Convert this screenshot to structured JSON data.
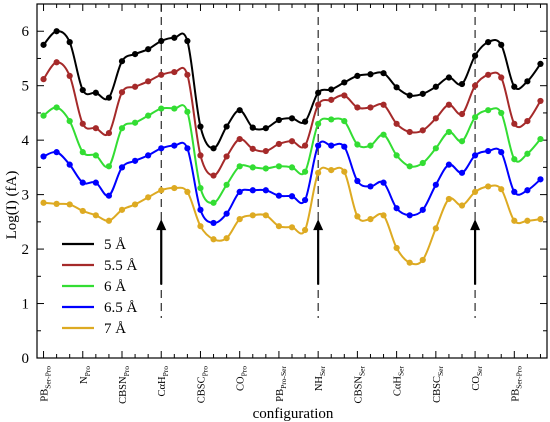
{
  "chart_data": {
    "type": "line",
    "title": "",
    "xlabel": "configuration",
    "ylabel": "Log(I) (fA)",
    "ylim": [
      0,
      6.5
    ],
    "yticks": [
      0,
      1,
      2,
      3,
      4,
      5,
      6
    ],
    "xlim": [
      0.5,
      39.5
    ],
    "grid": false,
    "legend_position": "lower-left",
    "x_categories": [
      {
        "base": "PB",
        "sub": "Ser-Pro",
        "x": 1
      },
      {
        "base": "N",
        "sub": "Pro",
        "x": 4
      },
      {
        "base": "CBSN",
        "sub": "Pro",
        "x": 7
      },
      {
        "base": "CαH",
        "sub": "Pro",
        "x": 10
      },
      {
        "base": "CBSC",
        "sub": "Pro",
        "x": 13
      },
      {
        "base": "CO",
        "sub": "Pro",
        "x": 16
      },
      {
        "base": "PB",
        "sub": "Pro-Ser",
        "x": 19
      },
      {
        "base": "NH",
        "sub": "Ser",
        "x": 22
      },
      {
        "base": "CBSN",
        "sub": "Ser",
        "x": 25
      },
      {
        "base": "CαH",
        "sub": "Ser",
        "x": 28
      },
      {
        "base": "CBSC",
        "sub": "Ser",
        "x": 31
      },
      {
        "base": "CO",
        "sub": "Ser",
        "x": 34
      },
      {
        "base": "PB",
        "sub": "Ser-Pro",
        "x": 37
      }
    ],
    "dashed_lines_x": [
      10,
      22,
      34
    ],
    "arrows": [
      {
        "x": 10,
        "y_from": 1.35,
        "y_to": 2.55
      },
      {
        "x": 22,
        "y_from": 1.35,
        "y_to": 2.55
      },
      {
        "x": 34,
        "y_from": 1.35,
        "y_to": 2.55
      }
    ],
    "x": [
      1,
      2,
      3,
      4,
      5,
      6,
      7,
      8,
      9,
      10,
      11,
      12,
      13,
      14,
      15,
      16,
      17,
      18,
      19,
      20,
      21,
      22,
      23,
      24,
      25,
      26,
      27,
      28,
      29,
      30,
      31,
      32,
      33,
      34,
      35,
      36,
      37,
      38,
      39
    ],
    "series": [
      {
        "name": "5 Å",
        "color": "#000000",
        "values": [
          5.75,
          6.0,
          5.8,
          4.92,
          4.87,
          4.78,
          5.45,
          5.58,
          5.67,
          5.82,
          5.88,
          5.82,
          4.25,
          3.85,
          4.25,
          4.55,
          4.23,
          4.22,
          4.37,
          4.4,
          4.34,
          4.87,
          4.93,
          5.06,
          5.18,
          5.21,
          5.23,
          4.97,
          4.82,
          4.85,
          4.98,
          5.15,
          5.03,
          5.55,
          5.8,
          5.75,
          4.98,
          5.08,
          5.4
        ]
      },
      {
        "name": "5.5 Å",
        "color": "#a52a2a",
        "values": [
          5.12,
          5.43,
          5.18,
          4.3,
          4.22,
          4.13,
          4.88,
          4.98,
          5.08,
          5.2,
          5.25,
          5.2,
          3.72,
          3.35,
          3.7,
          4.02,
          3.84,
          3.8,
          3.93,
          3.98,
          3.9,
          4.65,
          4.74,
          4.82,
          4.6,
          4.6,
          4.65,
          4.3,
          4.15,
          4.18,
          4.4,
          4.65,
          4.48,
          5.0,
          5.2,
          5.15,
          4.3,
          4.35,
          4.72
        ]
      },
      {
        "name": "6 Å",
        "color": "#33dd33",
        "values": [
          4.45,
          4.6,
          4.35,
          3.78,
          3.72,
          3.52,
          4.22,
          4.32,
          4.45,
          4.58,
          4.58,
          4.52,
          3.12,
          2.85,
          3.18,
          3.52,
          3.5,
          3.48,
          3.52,
          3.5,
          3.42,
          4.3,
          4.38,
          4.35,
          3.92,
          3.9,
          4.1,
          3.72,
          3.52,
          3.58,
          3.85,
          4.15,
          3.98,
          4.42,
          4.55,
          4.5,
          3.65,
          3.75,
          4.02
        ]
      },
      {
        "name": "6.5 Å",
        "color": "#0000ff",
        "values": [
          3.7,
          3.78,
          3.55,
          3.22,
          3.22,
          2.98,
          3.5,
          3.62,
          3.72,
          3.85,
          3.9,
          3.85,
          2.72,
          2.48,
          2.65,
          3.05,
          3.08,
          3.08,
          2.98,
          2.97,
          2.9,
          3.9,
          3.9,
          3.88,
          3.25,
          3.15,
          3.22,
          2.75,
          2.62,
          2.72,
          3.18,
          3.55,
          3.4,
          3.72,
          3.8,
          3.78,
          3.05,
          3.08,
          3.28
        ]
      },
      {
        "name": "7 Å",
        "color": "#ddaa22",
        "values": [
          2.85,
          2.83,
          2.82,
          2.7,
          2.62,
          2.52,
          2.72,
          2.82,
          2.95,
          3.08,
          3.12,
          3.05,
          2.42,
          2.18,
          2.2,
          2.55,
          2.62,
          2.62,
          2.42,
          2.4,
          2.35,
          3.4,
          3.45,
          3.42,
          2.6,
          2.55,
          2.62,
          2.02,
          1.75,
          1.8,
          2.38,
          2.92,
          2.8,
          3.05,
          3.15,
          3.1,
          2.52,
          2.52,
          2.55
        ]
      }
    ]
  }
}
